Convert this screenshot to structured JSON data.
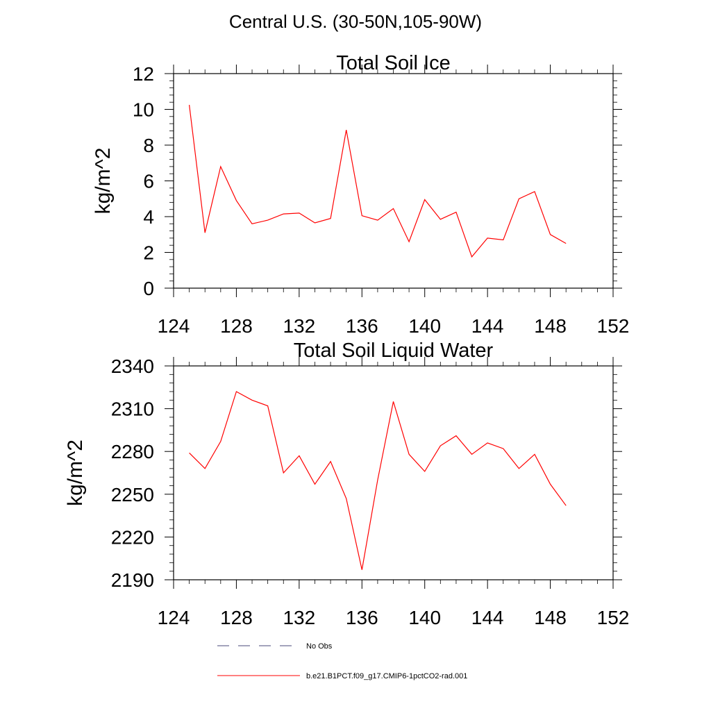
{
  "figure": {
    "title": "Central U.S. (30-50N,105-90W)"
  },
  "legend": {
    "items": [
      {
        "label": "No Obs",
        "style": "dashed",
        "color": "#4a4a7a"
      },
      {
        "label": "b.e21.B1PCT.f09_g17.CMIP6-1pctCO2-rad.001",
        "style": "solid",
        "color": "#ff0000"
      }
    ]
  },
  "chart_data": [
    {
      "type": "line",
      "title": "Total Soil Ice",
      "xlabel": "",
      "ylabel": "kg/m^2",
      "xlim": [
        124,
        152
      ],
      "ylim": [
        0,
        12
      ],
      "xticks": [
        124,
        128,
        132,
        136,
        140,
        144,
        148,
        152
      ],
      "yticks": [
        0,
        2,
        4,
        6,
        8,
        10,
        12
      ],
      "grid": false,
      "series": [
        {
          "color": "#ff0000",
          "x": [
            125,
            126,
            127,
            128,
            129,
            130,
            131,
            132,
            133,
            134,
            135,
            136,
            137,
            138,
            139,
            140,
            141,
            142,
            143,
            144,
            145,
            146,
            147,
            148,
            149
          ],
          "y": [
            10.25,
            3.1,
            6.8,
            4.9,
            3.6,
            3.8,
            4.15,
            4.2,
            3.65,
            3.9,
            8.85,
            4.05,
            3.8,
            4.45,
            2.6,
            4.95,
            3.85,
            4.25,
            1.75,
            2.8,
            2.7,
            5.0,
            5.4,
            3.0,
            2.5
          ]
        }
      ]
    },
    {
      "type": "line",
      "title": "Total Soil Liquid Water",
      "xlabel": "",
      "ylabel": "kg/m^2",
      "xlim": [
        124,
        152
      ],
      "ylim": [
        2190,
        2340
      ],
      "xticks": [
        124,
        128,
        132,
        136,
        140,
        144,
        148,
        152
      ],
      "yticks": [
        2190,
        2220,
        2250,
        2280,
        2310,
        2340
      ],
      "grid": false,
      "series": [
        {
          "color": "#ff0000",
          "x": [
            125,
            126,
            127,
            128,
            129,
            130,
            131,
            132,
            133,
            134,
            135,
            136,
            137,
            138,
            139,
            140,
            141,
            142,
            143,
            144,
            145,
            146,
            147,
            148,
            149
          ],
          "y": [
            2279,
            2268,
            2287,
            2322,
            2316,
            2312,
            2265,
            2277,
            2257,
            2273,
            2247,
            2197,
            2260,
            2315,
            2278,
            2266,
            2284,
            2291,
            2278,
            2286,
            2282,
            2268,
            2278,
            2257,
            2242
          ]
        }
      ]
    }
  ]
}
